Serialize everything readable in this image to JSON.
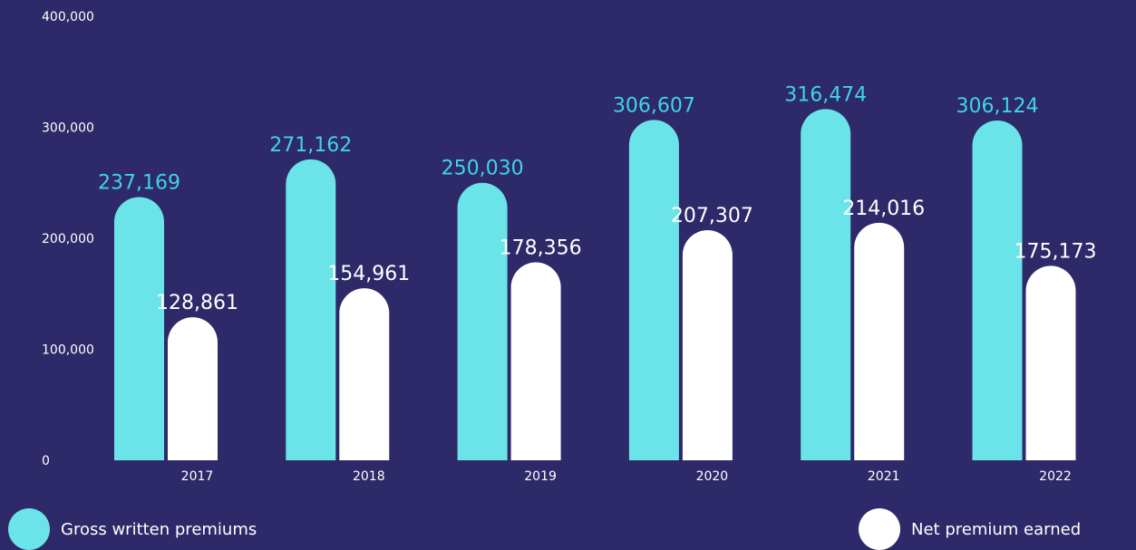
{
  "chart_data": {
    "type": "bar",
    "title": "",
    "xlabel": "",
    "ylabel": "",
    "categories": [
      "2017",
      "2018",
      "2019",
      "2020",
      "2021",
      "2022"
    ],
    "ylim": [
      0,
      400000
    ],
    "yticks": [
      0,
      100000,
      200000,
      300000,
      400000
    ],
    "ytick_labels": [
      "0",
      "100,000",
      "200,000",
      "300,000",
      "400,000"
    ],
    "grid": false,
    "legend_position": "bottom",
    "series": [
      {
        "name": "Gross written premiums",
        "values": [
          237169,
          271162,
          250030,
          306607,
          316474,
          306124
        ],
        "labels": [
          "237,169",
          "271,162",
          "250,030",
          "306,607",
          "316,474",
          "306,124"
        ],
        "color": "#6ae4e8",
        "label_color": "#3fd3e9"
      },
      {
        "name": "Net premium earned",
        "values": [
          128861,
          154961,
          178356,
          207307,
          214016,
          175173
        ],
        "labels": [
          "128,861",
          "154,961",
          "178,356",
          "207,307",
          "214,016",
          "175,173"
        ],
        "color": "#ffffff",
        "label_color": "#ffffff"
      }
    ],
    "colors": {
      "background": "#2e2968",
      "axis_text": "#ffffff"
    }
  }
}
